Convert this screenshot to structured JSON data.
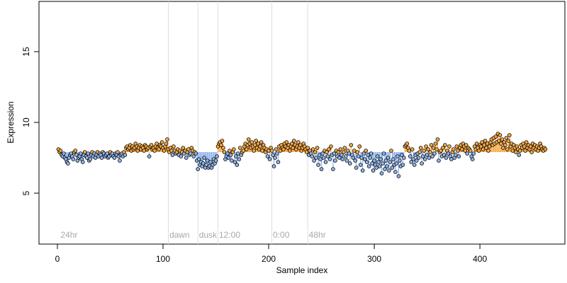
{
  "chart_data": {
    "type": "scatter",
    "xlabel": "Sample index",
    "ylabel": "Expression",
    "xlim": [
      -17.44,
      480.44
    ],
    "ylim": [
      1.4,
      18.55
    ],
    "xticks": [
      0,
      100,
      200,
      300,
      400
    ],
    "yticks": [
      5,
      10,
      15
    ],
    "baseline": 7.9,
    "colors": {
      "above": "#f5a742",
      "below": "#8fb4ea",
      "vline": "#dddddd"
    },
    "vlines": [
      105,
      133,
      152,
      203,
      237
    ],
    "annotations": [
      {
        "x": 3,
        "y": 2.0,
        "label": "24hr"
      },
      {
        "x": 106,
        "y": 2.0,
        "label": "dawn"
      },
      {
        "x": 134,
        "y": 2.0,
        "label": "dusk"
      },
      {
        "x": 153,
        "y": 2.0,
        "label": "12:00"
      },
      {
        "x": 204,
        "y": 2.0,
        "label": "0:00"
      },
      {
        "x": 238,
        "y": 2.0,
        "label": "48hr"
      }
    ],
    "x": [
      1,
      2,
      3,
      4,
      5,
      6,
      7,
      8,
      9,
      10,
      11,
      12,
      13,
      14,
      15,
      16,
      17,
      18,
      19,
      20,
      21,
      22,
      23,
      24,
      25,
      26,
      27,
      28,
      29,
      30,
      31,
      32,
      33,
      34,
      35,
      36,
      37,
      38,
      39,
      40,
      41,
      42,
      43,
      44,
      45,
      46,
      47,
      48,
      49,
      50,
      51,
      52,
      53,
      54,
      55,
      56,
      57,
      58,
      59,
      60,
      61,
      62,
      63,
      64,
      65,
      66,
      67,
      68,
      69,
      70,
      71,
      72,
      73,
      74,
      75,
      76,
      77,
      78,
      79,
      80,
      81,
      82,
      83,
      84,
      85,
      86,
      87,
      88,
      89,
      90,
      91,
      92,
      93,
      94,
      95,
      96,
      97,
      98,
      99,
      100,
      101,
      102,
      103,
      104,
      105,
      106,
      107,
      108,
      109,
      110,
      111,
      112,
      113,
      114,
      115,
      116,
      117,
      118,
      119,
      120,
      121,
      122,
      123,
      124,
      125,
      126,
      127,
      128,
      129,
      130,
      131,
      132,
      133,
      134,
      135,
      136,
      137,
      138,
      139,
      140,
      141,
      142,
      143,
      144,
      145,
      146,
      147,
      148,
      149,
      150,
      151,
      152,
      153,
      154,
      155,
      156,
      157,
      158,
      159,
      160,
      161,
      162,
      163,
      164,
      165,
      166,
      167,
      168,
      169,
      170,
      171,
      172,
      173,
      174,
      175,
      176,
      177,
      178,
      179,
      180,
      181,
      182,
      183,
      184,
      185,
      186,
      187,
      188,
      189,
      190,
      191,
      192,
      193,
      194,
      195,
      196,
      197,
      198,
      199,
      200,
      201,
      202,
      203,
      204,
      205,
      206,
      207,
      208,
      209,
      210,
      211,
      212,
      213,
      214,
      215,
      216,
      217,
      218,
      219,
      220,
      221,
      222,
      223,
      224,
      225,
      226,
      227,
      228,
      229,
      230,
      231,
      232,
      233,
      234,
      235,
      236,
      237,
      238,
      239,
      240,
      241,
      242,
      243,
      244,
      245,
      246,
      247,
      248,
      249,
      250,
      251,
      252,
      253,
      254,
      255,
      256,
      257,
      258,
      259,
      260,
      261,
      262,
      263,
      264,
      265,
      266,
      267,
      268,
      269,
      270,
      271,
      272,
      273,
      274,
      275,
      276,
      277,
      278,
      279,
      280,
      281,
      282,
      283,
      284,
      285,
      286,
      287,
      288,
      289,
      290,
      291,
      292,
      293,
      294,
      295,
      296,
      297,
      298,
      299,
      300,
      301,
      302,
      303,
      304,
      305,
      306,
      307,
      308,
      309,
      310,
      311,
      312,
      313,
      314,
      315,
      316,
      317,
      318,
      319,
      320,
      321,
      322,
      323,
      324,
      325,
      326,
      327,
      328,
      329,
      330,
      331,
      332,
      333,
      334,
      335,
      336,
      337,
      338,
      339,
      340,
      341,
      342,
      343,
      344,
      345,
      346,
      347,
      348,
      349,
      350,
      351,
      352,
      353,
      354,
      355,
      356,
      357,
      358,
      359,
      360,
      361,
      362,
      363,
      364,
      365,
      366,
      367,
      368,
      369,
      370,
      371,
      372,
      373,
      374,
      375,
      376,
      377,
      378,
      379,
      380,
      381,
      382,
      383,
      384,
      385,
      386,
      387,
      388,
      389,
      390,
      391,
      392,
      393,
      394,
      395,
      396,
      397,
      398,
      399,
      400,
      401,
      402,
      403,
      404,
      405,
      406,
      407,
      408,
      409,
      410,
      411,
      412,
      413,
      414,
      415,
      416,
      417,
      418,
      419,
      420,
      421,
      422,
      423,
      424,
      425,
      426,
      427,
      428,
      429,
      430,
      431,
      432,
      433,
      434,
      435,
      436,
      437,
      438,
      439,
      440,
      441,
      442,
      443,
      444,
      445,
      446,
      447,
      448,
      449,
      450,
      451,
      452,
      453,
      454,
      455,
      456,
      457,
      458,
      459,
      460,
      461,
      462
    ],
    "values": [
      8.1,
      7.9,
      8.0,
      7.7,
      7.6,
      7.8,
      7.5,
      7.4,
      7.2,
      7.1,
      7.5,
      7.7,
      7.8,
      7.6,
      7.4,
      7.9,
      8.0,
      7.7,
      7.3,
      7.5,
      7.6,
      7.8,
      7.4,
      7.2,
      7.7,
      7.9,
      7.6,
      7.5,
      7.8,
      7.3,
      7.4,
      7.7,
      7.9,
      7.6,
      7.8,
      7.5,
      7.7,
      7.9,
      7.6,
      7.8,
      7.7,
      7.5,
      7.9,
      7.8,
      7.6,
      7.7,
      7.8,
      7.5,
      7.6,
      7.9,
      7.7,
      7.8,
      7.6,
      7.5,
      7.8,
      7.7,
      7.9,
      7.6,
      7.3,
      7.7,
      7.8,
      7.6,
      7.9,
      7.7,
      8.2,
      8.3,
      8.1,
      8.2,
      8.4,
      8.0,
      8.3,
      8.1,
      8.2,
      8.5,
      8.3,
      8.0,
      8.2,
      8.4,
      8.1,
      8.3,
      8.2,
      8.0,
      8.4,
      8.3,
      8.1,
      8.2,
      7.6,
      8.3,
      8.4,
      8.1,
      8.2,
      8.0,
      8.3,
      8.5,
      8.2,
      8.1,
      8.4,
      8.3,
      8.6,
      8.2,
      8.0,
      8.3,
      8.5,
      8.8,
      8.1,
      7.9,
      8.2,
      8.0,
      7.7,
      8.3,
      8.0,
      7.8,
      7.9,
      8.1,
      7.7,
      8.0,
      7.6,
      7.9,
      8.2,
      7.8,
      8.0,
      7.5,
      7.9,
      8.1,
      7.7,
      7.8,
      8.2,
      8.0,
      7.6,
      7.9,
      7.8,
      7.3,
      6.7,
      7.4,
      7.0,
      7.2,
      6.9,
      7.1,
      7.5,
      6.8,
      7.0,
      7.3,
      6.8,
      6.9,
      7.2,
      6.8,
      7.0,
      7.4,
      7.1,
      7.3,
      7.6,
      8.3,
      8.5,
      8.6,
      8.4,
      8.7,
      8.2,
      7.9,
      7.4,
      7.6,
      7.8,
      7.5,
      8.0,
      7.7,
      7.3,
      7.9,
      8.1,
      7.2,
      7.6,
      7.0,
      7.8,
      7.4,
      8.2,
      7.7,
      7.9,
      8.0,
      8.3,
      8.5,
      8.1,
      8.4,
      8.8,
      8.5,
      8.2,
      8.6,
      8.3,
      8.0,
      8.4,
      8.7,
      8.2,
      8.5,
      8.1,
      8.3,
      8.6,
      8.0,
      8.4,
      8.2,
      7.9,
      8.1,
      7.6,
      8.0,
      7.4,
      8.2,
      8.0,
      7.7,
      6.9,
      7.5,
      8.1,
      7.8,
      7.2,
      8.3,
      8.0,
      8.4,
      8.2,
      8.1,
      8.5,
      8.3,
      8.6,
      8.2,
      8.4,
      8.0,
      8.3,
      8.5,
      8.2,
      8.7,
      8.4,
      8.1,
      8.3,
      8.6,
      8.2,
      8.4,
      8.0,
      8.2,
      8.5,
      8.3,
      8.1,
      7.9,
      8.2,
      7.7,
      8.0,
      7.8,
      7.6,
      8.1,
      7.3,
      7.9,
      7.5,
      8.2,
      7.0,
      7.7,
      7.4,
      6.7,
      7.8,
      7.5,
      8.0,
      7.2,
      7.9,
      7.6,
      8.1,
      7.4,
      8.3,
      7.7,
      6.7,
      7.8,
      7.3,
      8.0,
      7.6,
      7.9,
      7.5,
      8.1,
      7.7,
      7.4,
      7.9,
      8.2,
      7.6,
      7.3,
      8.0,
      7.8,
      7.1,
      8.4,
      7.7,
      7.5,
      8.0,
      7.3,
      6.8,
      7.9,
      7.6,
      8.3,
      7.0,
      7.5,
      6.6,
      7.8,
      7.4,
      8.0,
      7.2,
      7.7,
      6.9,
      7.5,
      7.8,
      7.1,
      6.6,
      7.3,
      7.0,
      6.8,
      7.6,
      7.2,
      6.9,
      7.4,
      6.4,
      7.1,
      7.8,
      6.7,
      7.3,
      6.9,
      7.5,
      6.6,
      7.2,
      8.0,
      6.8,
      7.4,
      7.0,
      6.5,
      7.1,
      7.6,
      6.2,
      7.3,
      6.9,
      7.7,
      7.0,
      7.5,
      8.3,
      8.4,
      8.5,
      8.2,
      8.0,
      7.6,
      7.2,
      8.1,
      7.4,
      7.0,
      7.7,
      7.3,
      7.8,
      7.5,
      7.9,
      8.2,
      7.1,
      7.6,
      8.0,
      7.4,
      8.3,
      7.7,
      8.1,
      7.5,
      7.9,
      8.4,
      7.6,
      8.2,
      7.8,
      8.5,
      8.1,
      8.8,
      7.3,
      7.9,
      8.0,
      7.6,
      8.2,
      7.7,
      8.4,
      7.5,
      8.0,
      7.8,
      8.3,
      7.6,
      7.4,
      7.9,
      8.1,
      7.5,
      7.7,
      8.3,
      8.0,
      7.6,
      8.2,
      8.4,
      8.1,
      8.5,
      8.3,
      8.0,
      8.4,
      7.8,
      8.2,
      8.1,
      8.0,
      7.6,
      7.4,
      7.8,
      8.3,
      8.1,
      8.5,
      8.2,
      8.0,
      8.4,
      8.3,
      8.6,
      8.1,
      8.4,
      8.7,
      8.2,
      8.5,
      8.0,
      8.3,
      8.6,
      8.8,
      8.4,
      8.9,
      8.5,
      9.0,
      8.6,
      9.2,
      8.7,
      9.1,
      8.5,
      8.8,
      8.2,
      8.6,
      8.4,
      8.9,
      8.1,
      8.7,
      9.1,
      8.3,
      8.5,
      8.0,
      8.4,
      8.2,
      7.9,
      8.3,
      8.1,
      7.7,
      8.0,
      8.4,
      8.2,
      8.5,
      8.3,
      8.0,
      8.6,
      8.2,
      8.4,
      8.1,
      8.3,
      7.9,
      8.5,
      8.2,
      8.4,
      8.1,
      8.3,
      8.0,
      8.2,
      8.5,
      8.3,
      8.1,
      8.0,
      8.2,
      8.1
    ]
  }
}
